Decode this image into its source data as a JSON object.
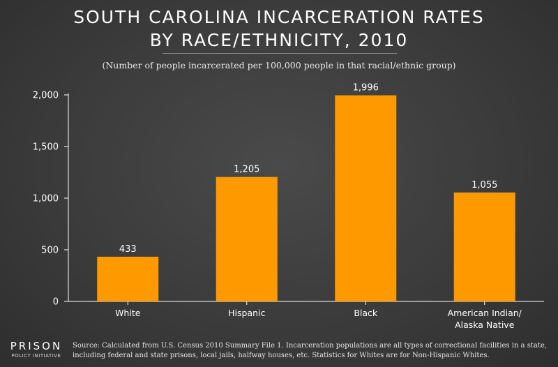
{
  "title": {
    "line1": "SOUTH CAROLINA INCARCERATION RATES",
    "line2": "BY RACE/ETHNICITY, 2010"
  },
  "subtitle": "(Number of people incarcerated per 100,000 people in that racial/ethnic group)",
  "colors": {
    "bar": "#ff9900",
    "axis": "#ffffff",
    "background": "#3c3c3c"
  },
  "chart_data": {
    "type": "bar",
    "title": "SOUTH CAROLINA INCARCERATION RATES BY RACE/ETHNICITY, 2010",
    "categories": [
      "White",
      "Hispanic",
      "Black",
      "American Indian/ Alaska Native"
    ],
    "category_lines": [
      [
        "White"
      ],
      [
        "Hispanic"
      ],
      [
        "Black"
      ],
      [
        "American Indian/",
        "Alaska Native"
      ]
    ],
    "values": [
      433,
      1205,
      1996,
      1055
    ],
    "value_labels": [
      "433",
      "1,205",
      "1,996",
      "1,055"
    ],
    "ylim": [
      0,
      2000
    ],
    "yticks": [
      0,
      500,
      1000,
      1500,
      2000
    ],
    "ytick_labels": [
      "0",
      "500",
      "1,000",
      "1,500",
      "2,000"
    ],
    "xlabel": "",
    "ylabel": "",
    "grid": false,
    "legend": "none"
  },
  "logo": {
    "top": "PRISON",
    "bottom": "POLICY INITIATIVE"
  },
  "source": "Source: Calculated from U.S. Census 2010 Summary File 1. Incarceration populations are all types of correctional facilities in a state, including federal and state prisons, local jails, halfway houses, etc. Statistics for Whites are for Non-Hispanic Whites."
}
